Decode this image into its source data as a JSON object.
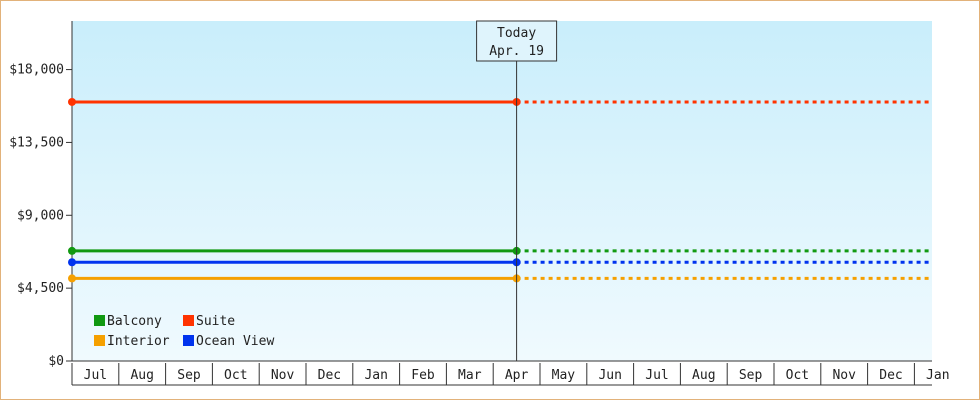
{
  "chart_data": {
    "type": "line",
    "title": "",
    "xlabel": "",
    "ylabel": "",
    "y_ticks": [
      0,
      4500,
      9000,
      13500,
      18000
    ],
    "y_tick_labels": [
      "$0",
      "$4,500",
      "$9,000",
      "$13,500",
      "$18,000"
    ],
    "ylim": [
      0,
      21000
    ],
    "months": [
      "Jul",
      "Aug",
      "Sep",
      "Oct",
      "Nov",
      "Dec",
      "Jan",
      "Feb",
      "Mar",
      "Apr",
      "May",
      "Jun",
      "Jul",
      "Aug",
      "Sep",
      "Oct",
      "Nov",
      "Dec",
      "Jan"
    ],
    "today_marker": {
      "line1": "Today",
      "line2": "Apr. 19",
      "month_index": 9
    },
    "series": [
      {
        "name": "Balcony",
        "color": "#119911",
        "value": 6800
      },
      {
        "name": "Suite",
        "color": "#ff3300",
        "value": 16000
      },
      {
        "name": "Interior",
        "color": "#f5a000",
        "value": 5100
      },
      {
        "name": "Ocean View",
        "color": "#0033ee",
        "value": 6100
      }
    ],
    "solid_until": "today",
    "dashed_after": "today",
    "grid": false,
    "legend_position": "bottom-left",
    "background_gradient": [
      "#c9eefb",
      "#f0fafe"
    ]
  }
}
